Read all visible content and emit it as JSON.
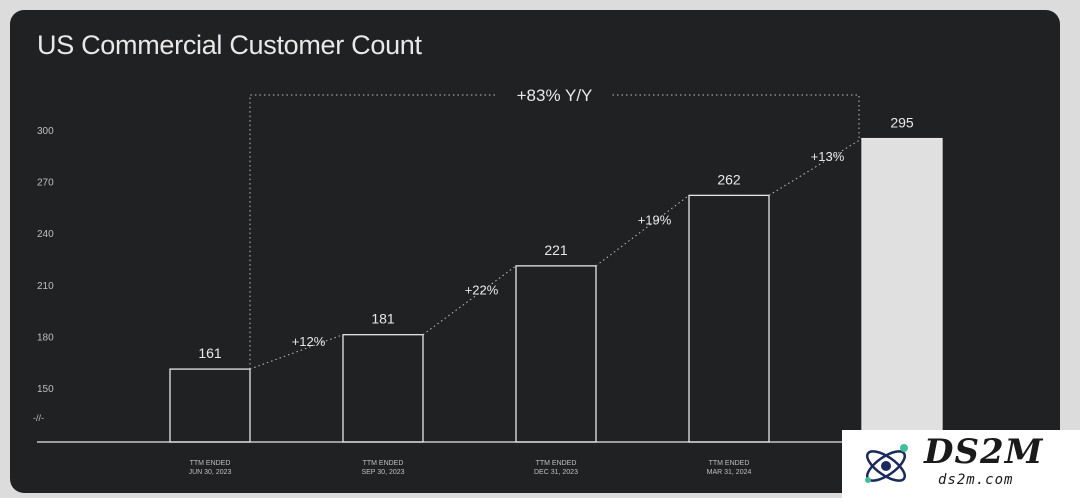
{
  "title": "US Commercial Customer Count",
  "watermark": {
    "text": "DS2M",
    "subtext": "ds2m.com"
  },
  "colors": {
    "background": "#1f2123",
    "bar_outline": "#e6e6e6",
    "highlight_bar": "#e0e0e0",
    "text": "#e8e8e8",
    "muted": "#bfbfbf"
  },
  "chart_data": {
    "type": "bar",
    "categories": [
      [
        "TTM ENDED",
        "JUN 30, 2023"
      ],
      [
        "TTM ENDED",
        "SEP 30, 2023"
      ],
      [
        "TTM ENDED",
        "DEC 31, 2023"
      ],
      [
        "TTM ENDED",
        "MAR 31, 2024"
      ],
      [
        "",
        ""
      ]
    ],
    "values": [
      161,
      181,
      221,
      262,
      295
    ],
    "value_labels": [
      "161",
      "181",
      "221",
      "262",
      "295"
    ],
    "growth_labels": [
      "+12%",
      "+22%",
      "+19%",
      "+13%"
    ],
    "overall_label": "+83% Y/Y",
    "yticks": [
      150,
      180,
      210,
      240,
      270,
      300
    ],
    "y_axis_break": "-//-",
    "ylim": [
      150,
      300
    ],
    "highlight_last": true,
    "grid": false
  }
}
